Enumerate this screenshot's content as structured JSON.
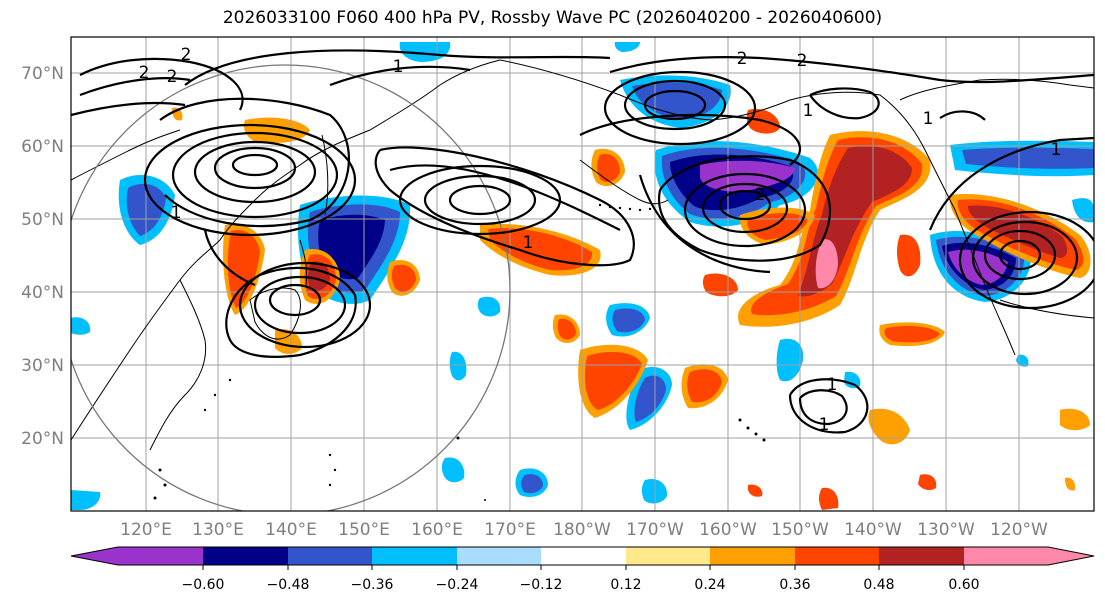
{
  "title": "2026033100 F060 400 hPa PV, Rossby Wave PC (2026040200 - 2026040600)",
  "lat_labels": [
    "70°N",
    "60°N",
    "50°N",
    "40°N",
    "30°N",
    "20°N"
  ],
  "lon_labels": [
    "120°E",
    "130°E",
    "140°E",
    "150°E",
    "160°E",
    "170°E",
    "180°W",
    "170°W",
    "160°W",
    "150°W",
    "140°W",
    "130°W",
    "120°W"
  ],
  "contour_labels": [
    "2",
    "2",
    "2",
    "1",
    "2",
    "2",
    "1",
    "1",
    "1",
    "1",
    "1",
    "2",
    "1",
    "1"
  ],
  "colorbar": {
    "levels": [
      "−0.60",
      "−0.48",
      "−0.36",
      "−0.24",
      "−0.12",
      "0.12",
      "0.24",
      "0.36",
      "0.48",
      "0.60"
    ],
    "colors": [
      "#9933cc",
      "#000088",
      "#3355cc",
      "#00bfff",
      "#aadcff",
      "#ffffff",
      "#ffe98a",
      "#ffa000",
      "#ff4400",
      "#b22222",
      "#ff88aa"
    ]
  }
}
